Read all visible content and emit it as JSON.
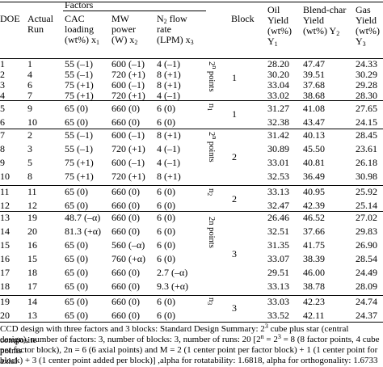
{
  "header": {
    "doe": "DOE",
    "actual_run_1": "Actual",
    "actual_run_2": "Run",
    "factors": "Factors",
    "cac_1": "CAC",
    "cac_2": "loading",
    "cac_3": "(wt%) x",
    "cac_sub": "1",
    "mw_1": "MW",
    "mw_2": "power",
    "mw_3": "(W) x",
    "mw_sub": "2",
    "n2_1": "N",
    "n2_sub0": "2",
    "n2_1b": " flow",
    "n2_2": "rate",
    "n2_3": "(LPM) x",
    "n2_sub": "3",
    "block": "Block",
    "oil_1": "Oil",
    "oil_2": "Yield",
    "oil_3": "(wt%)",
    "oil_4": "Y",
    "oil_sub": "1",
    "blend_1": "Blend-char",
    "blend_2": "Yield",
    "blend_3": "(wt%) Y",
    "blend_sub": "2",
    "gas_1": "Gas",
    "gas_2": "Yield",
    "gas_3": "(wt%)",
    "gas_4": "Y",
    "gas_sub": "3"
  },
  "groups": [
    {
      "label_main": "2",
      "label_sup": "n",
      "label_rest": " points",
      "block": "1"
    },
    {
      "label_main": "n",
      "label_sup": "",
      "label_rest": "",
      "label_sub": "1",
      "block": "1"
    },
    {
      "label_main": "2",
      "label_sup": "n",
      "label_rest": " points",
      "block": "2"
    },
    {
      "label_main": "n",
      "label_sup": "",
      "label_rest": "",
      "label_sub": "2",
      "block": "2"
    },
    {
      "label_main": "2n points",
      "label_sup": "",
      "label_rest": "",
      "block": "3"
    },
    {
      "label_main": "n",
      "label_sup": "",
      "label_rest": "",
      "label_sub": "3",
      "block": "3"
    }
  ],
  "rows": [
    {
      "doe": "1",
      "run": "1",
      "x1": "55 (–1)",
      "x2": "600 (–1)",
      "x3": "4 (–1)",
      "y1": "28.20",
      "y2": "47.47",
      "y3": "24.33"
    },
    {
      "doe": "2",
      "run": "4",
      "x1": "55 (–1)",
      "x2": "720 (+1)",
      "x3": "8 (+1)",
      "y1": "30.20",
      "y2": "39.51",
      "y3": "30.29"
    },
    {
      "doe": "3",
      "run": "6",
      "x1": "75 (+1)",
      "x2": "600 (–1)",
      "x3": "8 (+1)",
      "y1": "33.04",
      "y2": "37.68",
      "y3": "29.28"
    },
    {
      "doe": "4",
      "run": "7",
      "x1": "75 (+1)",
      "x2": "720 (+1)",
      "x3": "4 (–1)",
      "y1": "33.02",
      "y2": "38.68",
      "y3": "28.30"
    },
    {
      "doe": "5",
      "run": "9",
      "x1": "65 (0)",
      "x2": "660 (0)",
      "x3": "6 (0)",
      "y1": "31.27",
      "y2": "41.08",
      "y3": "27.65"
    },
    {
      "doe": "6",
      "run": "10",
      "x1": "65 (0)",
      "x2": "660 (0)",
      "x3": "6 (0)",
      "y1": "32.38",
      "y2": "43.47",
      "y3": "24.15"
    },
    {
      "doe": "7",
      "run": "2",
      "x1": "55 (–1)",
      "x2": "600 (–1)",
      "x3": "8 (+1)",
      "y1": "31.42",
      "y2": "40.13",
      "y3": "28.45"
    },
    {
      "doe": "8",
      "run": "3",
      "x1": "55 (–1)",
      "x2": "720 (+1)",
      "x3": "4 (–1)",
      "y1": "30.89",
      "y2": "45.50",
      "y3": "23.61"
    },
    {
      "doe": "9",
      "run": "5",
      "x1": "75 (+1)",
      "x2": "600 (–1)",
      "x3": "4 (–1)",
      "y1": "33.01",
      "y2": "40.81",
      "y3": "26.18"
    },
    {
      "doe": "10",
      "run": "8",
      "x1": "75 (+1)",
      "x2": "720 (+1)",
      "x3": "8 (+1)",
      "y1": "32.53",
      "y2": "36.49",
      "y3": "30.98"
    },
    {
      "doe": "11",
      "run": "11",
      "x1": "65 (0)",
      "x2": "660 (0)",
      "x3": "6 (0)",
      "y1": "33.13",
      "y2": "40.95",
      "y3": "25.92"
    },
    {
      "doe": "12",
      "run": "12",
      "x1": "65 (0)",
      "x2": "660 (0)",
      "x3": "6 (0)",
      "y1": "32.47",
      "y2": "42.39",
      "y3": "25.14"
    },
    {
      "doe": "13",
      "run": "19",
      "x1": "48.7 (–α)",
      "x2": "660 (0)",
      "x3": "6 (0)",
      "y1": "26.46",
      "y2": "46.52",
      "y3": "27.02"
    },
    {
      "doe": "14",
      "run": "20",
      "x1": "81.3 (+α)",
      "x2": "660 (0)",
      "x3": "6 (0)",
      "y1": "32.51",
      "y2": "37.66",
      "y3": "29.83"
    },
    {
      "doe": "15",
      "run": "16",
      "x1": "65 (0)",
      "x2": "560 (–α)",
      "x3": "6 (0)",
      "y1": "31.35",
      "y2": "41.75",
      "y3": "26.90"
    },
    {
      "doe": "16",
      "run": "15",
      "x1": "65 (0)",
      "x2": "760 (+α)",
      "x3": "6 (0)",
      "y1": "33.07",
      "y2": "38.39",
      "y3": "28.54"
    },
    {
      "doe": "17",
      "run": "18",
      "x1": "65 (0)",
      "x2": "660 (0)",
      "x3": "2.7 (–α)",
      "y1": "29.51",
      "y2": "46.00",
      "y3": "24.49"
    },
    {
      "doe": "18",
      "run": "17",
      "x1": "65 (0)",
      "x2": "660 (0)",
      "x3": "9.3 (+α)",
      "y1": "33.13",
      "y2": "38.78",
      "y3": "28.09"
    },
    {
      "doe": "19",
      "run": "14",
      "x1": "65 (0)",
      "x2": "660 (0)",
      "x3": "6 (0)",
      "y1": "33.03",
      "y2": "42.23",
      "y3": "24.74"
    },
    {
      "doe": "20",
      "run": "13",
      "x1": "65 (0)",
      "x2": "660 (0)",
      "x3": "6 (0)",
      "y1": "33.52",
      "y2": "42.11",
      "y3": "24.37"
    }
  ],
  "footnote": {
    "line1a": "CCD design with three factors and 3 blocks: Standard Design Summary: 2",
    "line1sup": "3",
    "line1b": " cube plus star (central composite",
    "line2a": "design), number of factors: 3, number of blocks: 3, number of runs: 20 [2",
    "line2sup1": "n",
    "line2b": " = 2",
    "line2sup2": "3",
    "line2c": " = 8 (8 factor points, 4 cube points",
    "line3": "per factor block), 2n = 6 (6 axial points) and M = 2 (1 center point per factor block) + 1 (1 center point for axial",
    "line4": "block) + 3 (1 center point added per block)] ,alpha for rotatability: 1.6818, alpha for orthogonality: 1.6733"
  }
}
